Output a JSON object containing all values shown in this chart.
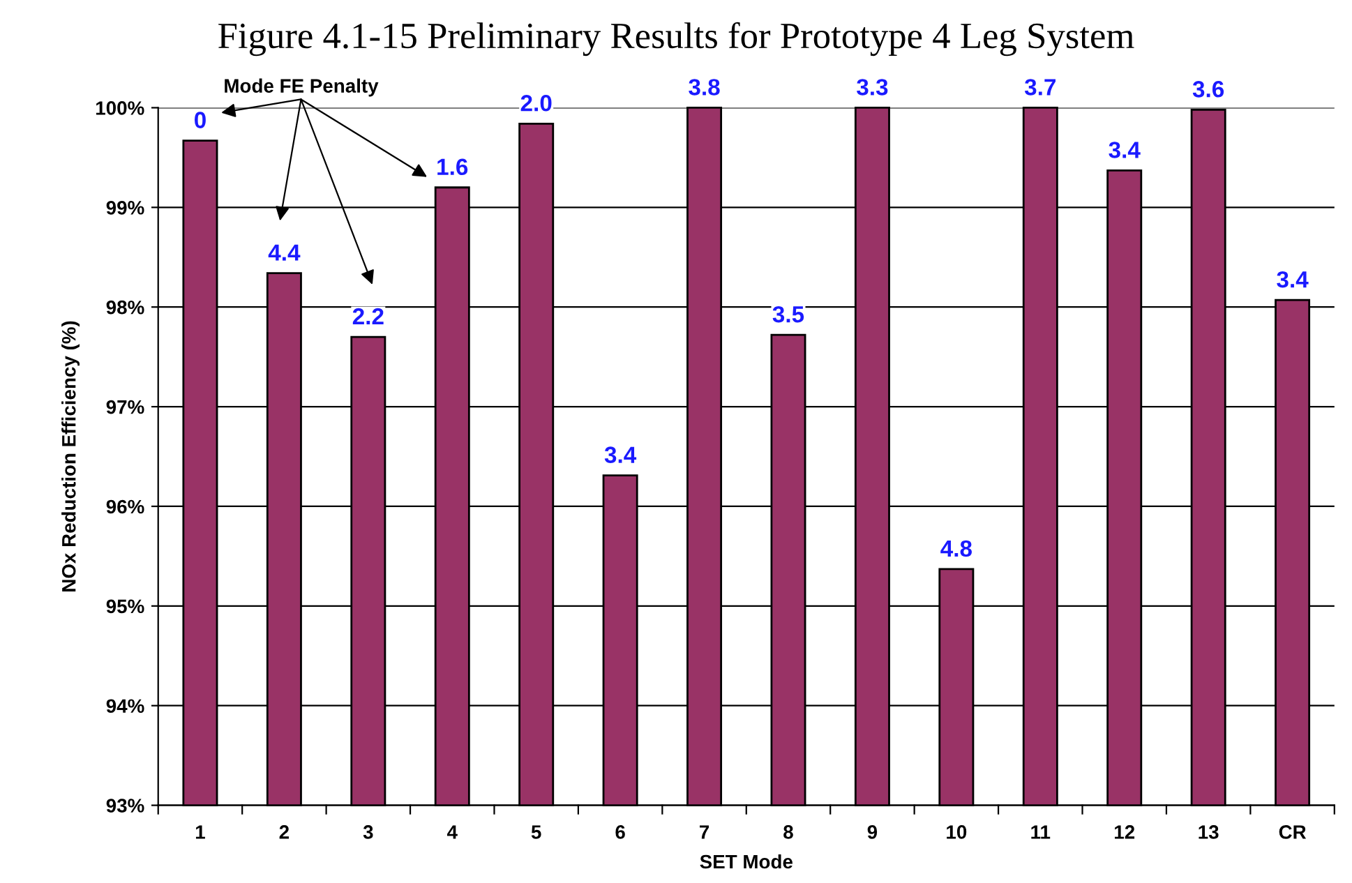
{
  "chart_data": {
    "type": "bar",
    "title": "Figure 4.1-15 Preliminary Results for Prototype 4 Leg System",
    "xlabel": "SET Mode",
    "ylabel": "NOx Reduction Efficiency (%)",
    "categories": [
      "1",
      "2",
      "3",
      "4",
      "5",
      "6",
      "7",
      "8",
      "9",
      "10",
      "11",
      "12",
      "13",
      "CR"
    ],
    "values": [
      99.67,
      98.34,
      97.7,
      99.2,
      99.84,
      96.31,
      100,
      97.72,
      100,
      95.37,
      100,
      99.37,
      99.98,
      98.07
    ],
    "color": "#993366",
    "ylim": [
      93,
      100
    ],
    "yticks": [
      {
        "value": 93,
        "label": "93%"
      },
      {
        "value": 94,
        "label": "94%"
      },
      {
        "value": 95,
        "label": "95%"
      },
      {
        "value": 96,
        "label": "96%"
      },
      {
        "value": 97,
        "label": "97%"
      },
      {
        "value": 98,
        "label": "98%"
      },
      {
        "value": 99,
        "label": "99%"
      },
      {
        "value": 100,
        "label": "100%"
      }
    ],
    "grid": "y",
    "annotations": [
      "Mode FE Penalty",
      {
        "text": "0",
        "x": "1",
        "y": 99.67
      },
      {
        "text": "4.4",
        "x": "2",
        "y": 98.34
      },
      {
        "text": "2.2",
        "x": "3",
        "y": 97.7
      },
      {
        "text": "1.6",
        "x": "4",
        "y": 99.2
      },
      {
        "text": "2.0",
        "x": "5",
        "y": 99.84
      },
      {
        "text": "3.4",
        "x": "6",
        "y": 96.31
      },
      {
        "text": "3.8",
        "x": "7",
        "y": 100
      },
      {
        "text": "3.5",
        "x": "8",
        "y": 97.72
      },
      {
        "text": "3.3",
        "x": "9",
        "y": 100
      },
      {
        "text": "4.8",
        "x": "10",
        "y": 95.37
      },
      {
        "text": "3.7",
        "x": "11",
        "y": 100
      },
      {
        "text": "3.4",
        "x": "12",
        "y": 99.37
      },
      {
        "text": "3.6",
        "x": "13",
        "y": 99.98
      },
      {
        "text": "3.4",
        "x": "CR",
        "y": 98.07
      }
    ]
  }
}
